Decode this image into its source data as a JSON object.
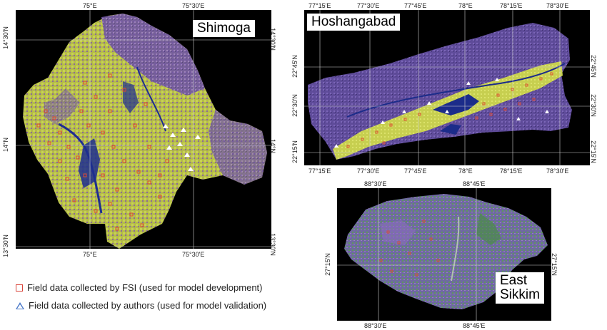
{
  "panels": {
    "shimoga": {
      "name": "Shimoga",
      "top_ticks": [
        "75°E",
        "75°30'E"
      ],
      "bottom_ticks": [
        "75°E",
        "75°30'E"
      ],
      "left_ticks": [
        "14°30'N",
        "14°N",
        "13°30'N"
      ],
      "right_ticks": [
        "14°30'N",
        "14°N",
        "13°30'N"
      ]
    },
    "hoshangabad": {
      "name": "Hoshangabad",
      "top_ticks": [
        "77°15'E",
        "77°30'E",
        "77°45'E",
        "78°E",
        "78°15'E",
        "78°30'E"
      ],
      "bottom_ticks": [
        "77°15'E",
        "77°30'E",
        "77°45'E",
        "78°E",
        "78°15'E",
        "78°30'E"
      ],
      "left_ticks": [
        "22°45'N",
        "22°30'N",
        "22°15'N"
      ],
      "right_ticks": [
        "22°45'N",
        "22°30'N",
        "22°15'N"
      ]
    },
    "sikkim": {
      "name": "East Sikkim",
      "name_line1": "East",
      "name_line2": "Sikkim",
      "top_ticks": [
        "88°30'E",
        "88°45'E"
      ],
      "bottom_ticks": [
        "88°30'E",
        "88°45'E"
      ],
      "left_ticks": [
        "27°15'N"
      ],
      "right_ticks": [
        "27°15'N"
      ]
    }
  },
  "legend": {
    "fsi_label": "Field data collected by FSI (used for model development)",
    "authors_label": "Field data collected by authors (used for model validation)",
    "fsi_color": "#d9443a",
    "authors_color": "#4a78c8"
  },
  "colors": {
    "forest_purple": "#6a4a9c",
    "crop_yellow": "#c8d24a",
    "water_blue": "#1a2a8a",
    "green": "#5a8a4a"
  }
}
